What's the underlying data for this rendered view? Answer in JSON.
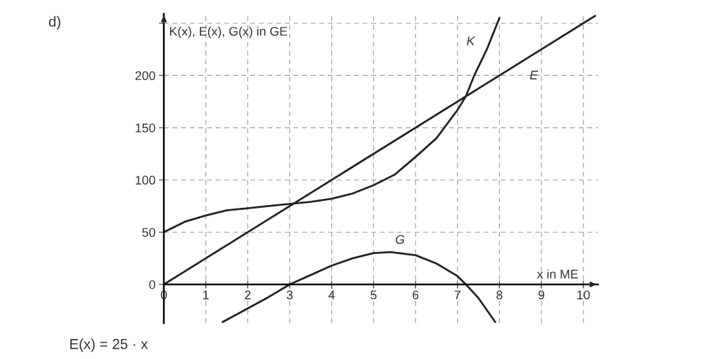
{
  "chart_data": {
    "type": "line",
    "ylabel": "K(x), E(x), G(x) in GE",
    "xlabel": "x in ME",
    "annotations": [
      "d)",
      "E(x) = 25 · x"
    ],
    "series": [
      {
        "name": "K",
        "color": "#222222",
        "x": [
          0,
          0.5,
          1,
          1.5,
          2,
          2.5,
          3,
          3.5,
          4,
          4.5,
          5,
          5.5,
          6,
          6.5,
          7,
          7.2,
          7.4,
          7.7,
          8.0
        ],
        "values": [
          50,
          60,
          66,
          71,
          73,
          75,
          77,
          79,
          82,
          87,
          95,
          105,
          122,
          140,
          167,
          180,
          200,
          225,
          255
        ]
      },
      {
        "name": "E",
        "color": "#222222",
        "x": [
          0,
          10.28
        ],
        "values": [
          0,
          257
        ]
      },
      {
        "name": "G",
        "color": "#222222",
        "x": [
          1.4,
          2,
          2.5,
          3,
          3.5,
          4,
          4.5,
          5,
          5.4,
          6,
          6.5,
          7,
          7.2,
          7.5,
          7.9
        ],
        "values": [
          -36,
          -23,
          -12,
          0,
          9,
          18,
          25,
          30,
          31,
          28,
          20,
          8,
          0,
          -13,
          -36
        ]
      }
    ],
    "xlim": [
      0,
      10.35
    ],
    "ylim": [
      -37,
      259
    ],
    "xticks": [
      0,
      1,
      2,
      3,
      4,
      5,
      6,
      7,
      8,
      9,
      10
    ],
    "yticks": [
      0,
      50,
      100,
      150,
      200,
      {
        "value": 250,
        "label": null
      }
    ],
    "grid": true,
    "marker": "none",
    "line_style": "solid",
    "legend": false
  }
}
